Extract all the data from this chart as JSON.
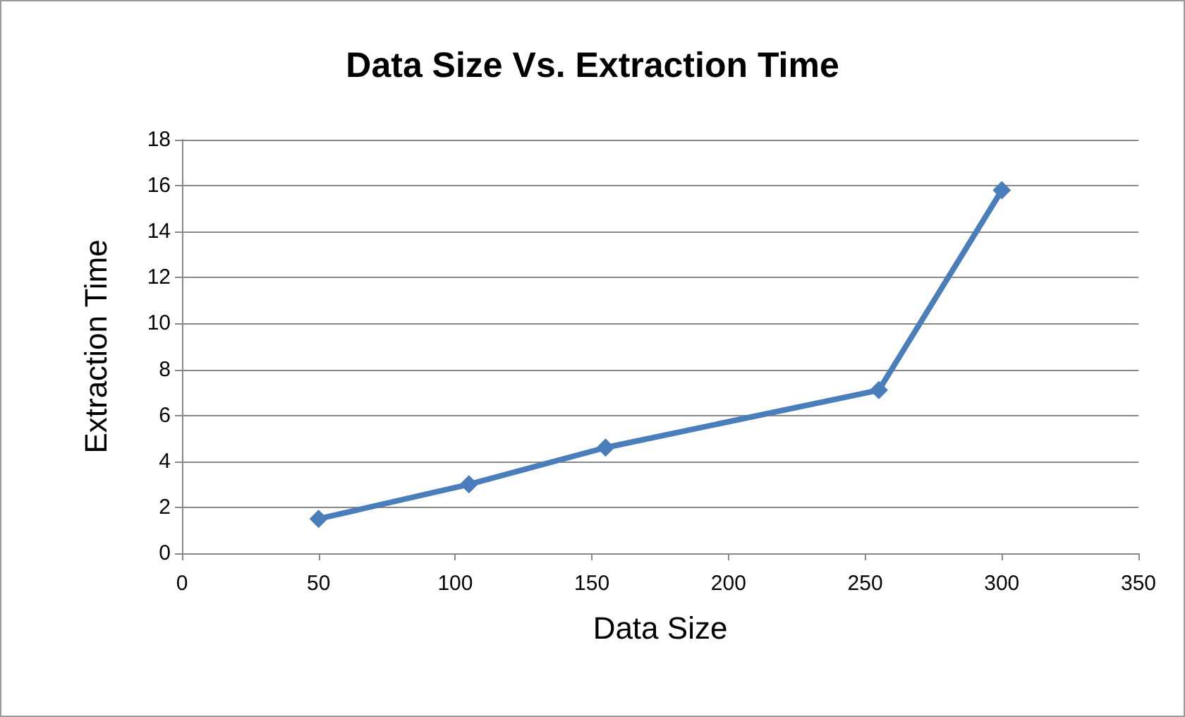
{
  "chart_data": {
    "type": "line",
    "title": "Data Size Vs. Extraction Time",
    "xlabel": "Data Size",
    "ylabel": "Extraction Time",
    "x": [
      50,
      105,
      155,
      255,
      300
    ],
    "series": [
      {
        "color": "#4a7ebb",
        "values": [
          1.5,
          3.0,
          4.6,
          7.1,
          15.8
        ]
      }
    ],
    "xlim": [
      0,
      350
    ],
    "xticks": [
      0,
      50,
      100,
      150,
      200,
      250,
      300,
      350
    ],
    "ylim": [
      0,
      18
    ],
    "yticks": [
      0,
      2,
      4,
      6,
      8,
      10,
      12,
      14,
      16,
      18
    ],
    "grid": "y",
    "marker": "diamond",
    "line_style": "solid"
  }
}
